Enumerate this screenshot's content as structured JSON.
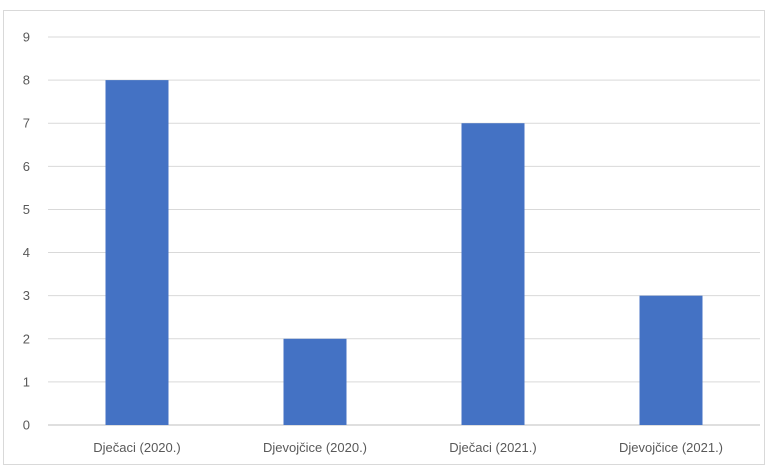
{
  "chart_data": {
    "type": "bar",
    "title": "",
    "xlabel": "",
    "ylabel": "",
    "categories": [
      "Dječaci (2020.)",
      "Djevojčice (2020.)",
      "Dječaci (2021.)",
      "Djevojčice (2021.)"
    ],
    "values": [
      8,
      2,
      7,
      3
    ],
    "ylim": [
      0,
      9
    ],
    "yticks": [
      0,
      1,
      2,
      3,
      4,
      5,
      6,
      7,
      8,
      9
    ],
    "grid": true,
    "legend": "none",
    "bar_color": "#4472c4"
  }
}
